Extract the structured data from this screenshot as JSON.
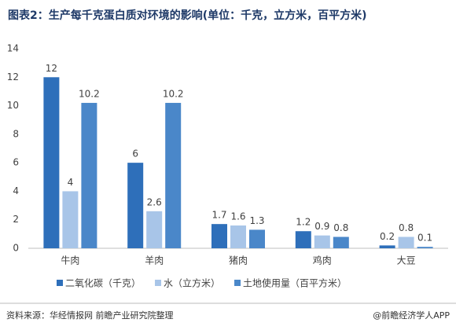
{
  "chart_data": {
    "type": "bar",
    "title": "图表2：生产每千克蛋白质对环境的影响(单位：千克，立方米，百平方米)",
    "categories": [
      "牛肉",
      "羊肉",
      "猪肉",
      "鸡肉",
      "大豆"
    ],
    "series": [
      {
        "name": "二氧化碳（千克）",
        "color": "#2e6fba",
        "values": [
          12,
          6,
          1.7,
          1.2,
          0.2
        ]
      },
      {
        "name": "水（立方米）",
        "color": "#a8c5e8",
        "values": [
          4,
          2.6,
          1.6,
          0.9,
          0.8
        ]
      },
      {
        "name": "土地使用量（百平方米）",
        "color": "#4a87c9",
        "values": [
          10.2,
          10.2,
          1.3,
          0.8,
          0.1
        ]
      }
    ],
    "ylim": [
      0,
      14
    ],
    "yticks": [
      0,
      2,
      4,
      6,
      8,
      10,
      12,
      14
    ],
    "grid": false,
    "source": "资料来源：华经情报网 前瞻产业研究院整理",
    "credit": "@前瞻经济学人APP"
  }
}
